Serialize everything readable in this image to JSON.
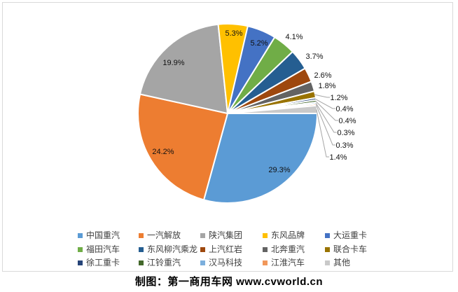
{
  "footer": {
    "credit": "制图：第一商用车网 www.cvworld.cn"
  },
  "chart_data": {
    "type": "pie",
    "title": "",
    "unit": "%",
    "label_format": "percent",
    "legend_position": "bottom",
    "start_angle_deg": 90,
    "direction": "clockwise",
    "series": [
      {
        "name": "中国重汽",
        "value": 29.3,
        "color": "#5B9BD5"
      },
      {
        "name": "一汽解放",
        "value": 24.2,
        "color": "#ED7D31"
      },
      {
        "name": "陕汽集团",
        "value": 19.9,
        "color": "#A5A5A5"
      },
      {
        "name": "东风品牌",
        "value": 5.3,
        "color": "#FFC000"
      },
      {
        "name": "大运重卡",
        "value": 5.2,
        "color": "#4472C4"
      },
      {
        "name": "福田汽车",
        "value": 4.1,
        "color": "#70AD47"
      },
      {
        "name": "东风柳汽乘龙",
        "value": 3.7,
        "color": "#255E91"
      },
      {
        "name": "上汽红岩",
        "value": 2.6,
        "color": "#9E480E"
      },
      {
        "name": "北奔重汽",
        "value": 1.8,
        "color": "#636363"
      },
      {
        "name": "联合卡车",
        "value": 1.2,
        "color": "#997300"
      },
      {
        "name": "徐工重卡",
        "value": 0.4,
        "color": "#264478"
      },
      {
        "name": "江铃重汽",
        "value": 0.4,
        "color": "#43682B"
      },
      {
        "name": "汉马科技",
        "value": 0.3,
        "color": "#7CAFDD"
      },
      {
        "name": "江淮汽车",
        "value": 0.3,
        "color": "#F1975A"
      },
      {
        "name": "其他",
        "value": 1.4,
        "color": "#C9C9C9"
      }
    ],
    "colors": {
      "leader_line": "#A6A6A6",
      "label_text": "#111111",
      "legend_text": "#404040",
      "frame_border": "#D9D9D9",
      "background": "#FFFFFF"
    }
  }
}
